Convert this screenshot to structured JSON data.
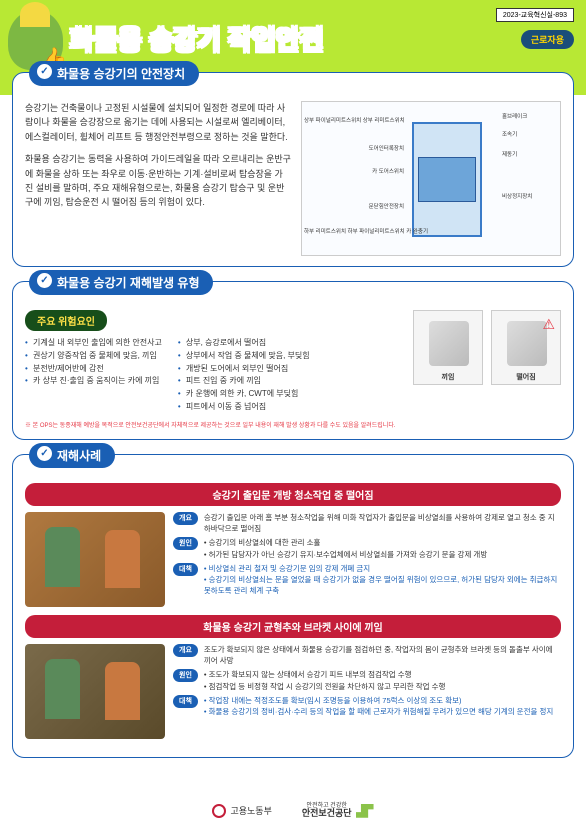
{
  "doc_id": "2023-교육혁신실-893",
  "badge": "근로자용",
  "title_part1": "화물용 승강기",
  "title_part2": "작업안전",
  "section1": {
    "title": "화물용 승강기의 안전장치",
    "para1": "승강기는 건축물이나 고정된 시설물에 설치되어 일정한 경로에 따라 사람이나 화물을 승강장으로 옮기는 데에 사용되는 시설로써 엘리베이터, 에스컬레이터, 휠체어 리프트 등 행정안전부령으로 정하는 것을 말한다.",
    "para2": "화물용 승강기는 동력을 사용하여 가이드레일을 따라 오르내리는 운반구에 화물을 상하 또는 좌우로 이동·운반하는 기계·설비로써 탑승장을 가진 설비를 말하며, 주요 재해유형으로는, 화물용 승강기 탑승구 및 운반구에 끼임, 탑승운전 시 떨어짐 등의 위험이 있다."
  },
  "diagram_labels": {
    "l1": "상부 파이널리미트스위치\n상부 리미트스위치",
    "l2": "도어인터록장치",
    "l3": "카 도어스위치",
    "l4": "문닫힘안전장치",
    "l5": "하부 리미트스위치\n하부 파이널리미트스위치\n카 완충기",
    "r1": "홀브레이크",
    "r2": "조속기",
    "r3": "제동기",
    "r4": "비상정지장치"
  },
  "section2": {
    "title": "화물용 승강기 재해발생 유형",
    "risk_tag": "주요 위험요인",
    "left_items": [
      "기계실 내 외부인 출입에 의한 안전사고",
      "권상기 양중작업 중 물체에 맞음, 끼임",
      "분전반/제어반에 감전",
      "카 상부 진·출입 중 움직이는 카에 끼임"
    ],
    "right_items": [
      "상부, 승강로에서 떨어짐",
      "상부에서 작업 중 물체에 맞음, 부딪힘",
      "개방된 도어에서 외부인 떨어짐",
      "피트 진입 중 카에 끼임",
      "카 운행에 의한 카, CWT에 부딪힘",
      "피트에서 이동 중 넘어짐"
    ],
    "img1_cap": "끼임",
    "img2_cap": "떨어짐",
    "note": "※ 본 OPS는 동종재해 예방을 목적으로 안전보건공단에서 자체적으로 제공하는 것으로 일부 내용이 재해 발생 상황과 다를 수도 있음을 알려드립니다."
  },
  "section3": {
    "title": "재해사례",
    "case1": {
      "title": "승강기 출입문 개방 청소작업 중 떨어짐",
      "overview": "승강기 출입문 아래 홈 부분 청소작업을 위해 미화 작업자가 출입문을 비상열쇠를 사용하여 강제로 열고 청소 중 지하바닥으로 떨어짐",
      "cause": "• 승강기의 비상열쇠에 대한 관리 소홀\n• 허가된 담당자가 아닌 승강기 유지·보수업체에서 비상열쇠를 가져와 승강기 문을 강제 개방",
      "measure": "• 비상열쇠 관리 철저 및 승강기문 임의 강제 개폐 금지\n• 승강기의 비상열쇠는 문을 열었을 때 승강기가 없을 경우 떨어질 위험이 있으므로, 허가된 담당자 외에는 취급하지 못하도록 관리 체계 구축"
    },
    "case2": {
      "title": "화물용 승강기 균형추와 브라켓 사이에 끼임",
      "overview": "조도가 확보되지 않은 상태에서 화물용 승강기를 점검하던 중, 작업자의 몸이 균형추와 브라켓 등의 돌출부 사이에 끼어 사망",
      "cause": "• 조도가 확보되지 않는 상태에서 승강기 피트 내부의 점검작업 수행\n• 점검작업 등 비정형 작업 시 승강기의 전원을 차단하지 않고 무리한 작업 수행",
      "measure": "• 작업장 내에는 적정조도를 확보(임시 조명등을 이용하여 75럭스 이상의 조도 확보)\n• 화물용 승강기의 정비·검사·수리 등의 작업을 할 때에 근로자가 위험해질 우려가 있으면 해당 기계의 운전을 정지"
    }
  },
  "tags": {
    "overview": "개요",
    "cause": "원인",
    "measure": "대책"
  },
  "footer": {
    "org1": "고용노동부",
    "org2_sub": "안전하고 건강한",
    "org2": "안전보건공단"
  }
}
